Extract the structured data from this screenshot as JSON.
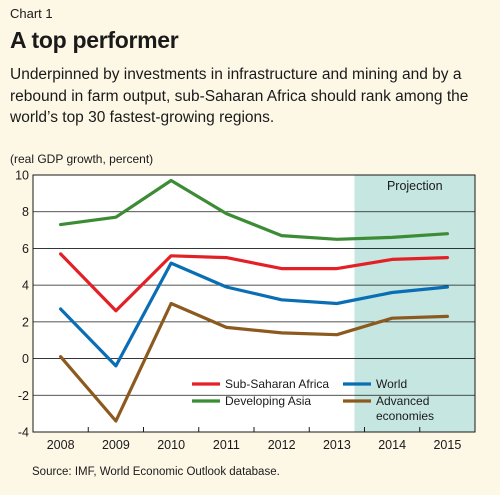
{
  "header": {
    "chart_label": "Chart 1",
    "title": "A top performer",
    "subtitle": "Underpinned by investments in infrastructure and mining and by a rebound in farm output, sub-Saharan Africa should rank among the world’s top 30 fastest-growing regions.",
    "unit_note": "(real GDP growth, percent)"
  },
  "footer": {
    "source": "Source: IMF, World Economic Outlook database."
  },
  "chart_data": {
    "type": "line",
    "title": "A top performer",
    "ylabel": "(real GDP growth, percent)",
    "xlabel": "",
    "x": [
      "2008",
      "2009",
      "2010",
      "2011",
      "2012",
      "2013",
      "2014",
      "2015"
    ],
    "ylim": [
      -4,
      10
    ],
    "yticks": [
      -4,
      -2,
      0,
      2,
      4,
      6,
      8,
      10
    ],
    "grid": true,
    "projection": {
      "label": "Projection",
      "from": "2014",
      "to": "2015",
      "color": "#c5e6e1"
    },
    "series": [
      {
        "name": "Sub-Saharan Africa",
        "color": "#e32026",
        "values": [
          5.7,
          2.6,
          5.6,
          5.5,
          4.9,
          4.9,
          5.4,
          5.5
        ]
      },
      {
        "name": "World",
        "color": "#0a6eb4",
        "values": [
          2.7,
          -0.4,
          5.2,
          3.9,
          3.2,
          3.0,
          3.6,
          3.9
        ]
      },
      {
        "name": "Developing Asia",
        "color": "#3b8c35",
        "values": [
          7.3,
          7.7,
          9.7,
          7.9,
          6.7,
          6.5,
          6.6,
          6.8
        ]
      },
      {
        "name": "Advanced economies",
        "legend_lines": [
          "Advanced",
          "economies"
        ],
        "color": "#8c5a1e",
        "values": [
          0.1,
          -3.4,
          3.0,
          1.7,
          1.4,
          1.3,
          2.2,
          2.3
        ]
      }
    ],
    "legend": {
      "placement": "bottom-center"
    }
  }
}
